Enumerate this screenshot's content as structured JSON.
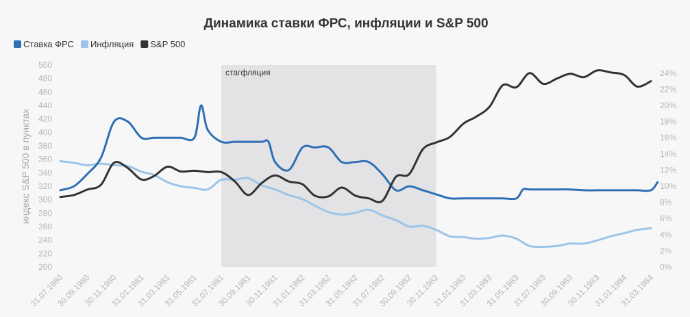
{
  "chart_data": {
    "type": "line",
    "title": "Динамика ставки ФРС, инфляции и S&P 500",
    "ylabel": "индекс S&P 500 в пунктах",
    "ylim": [
      200,
      500
    ],
    "y_ticks": [
      "500",
      "480",
      "460",
      "440",
      "420",
      "400",
      "380",
      "360",
      "340",
      "320",
      "300",
      "280",
      "260",
      "240",
      "220",
      "200"
    ],
    "y2lim": [
      0,
      25
    ],
    "y2_ticks": [
      "24%",
      "22%",
      "20%",
      "18%",
      "16%",
      "14%",
      "12%",
      "10%",
      "8%",
      "6%",
      "4%",
      "2%",
      "0%"
    ],
    "x_ticks": [
      "31.07.1980",
      "30.09.1980",
      "30.11.1980",
      "31.01.1981",
      "31.03.1981",
      "31.05.1981",
      "31.07.1981",
      "30.09.1981",
      "30.11.1981",
      "31.01.1982",
      "31.03.1982",
      "31.05.1982",
      "31.07.1982",
      "30.09.1982",
      "30.11.1982",
      "31.01.1983",
      "31.03.1983",
      "31.05.1983",
      "31.07.1983",
      "30.09.1983",
      "30.11.1983",
      "31.01.1984",
      "31.03.1984"
    ],
    "grid": false,
    "legend_position": "top-left",
    "shaded_region": {
      "label": "стагфляция",
      "from": "31.07.1981",
      "to": "30.11.1982",
      "color": "#e3e3e5"
    },
    "series": [
      {
        "name": "Ставка ФРС",
        "axis": "right",
        "color": "#2e6fb6",
        "points": [
          [
            "31.07.1980",
            9.5
          ],
          [
            "31.08.1980",
            10.0
          ],
          [
            "30.09.1980",
            11.5
          ],
          [
            "31.10.1980",
            13.5
          ],
          [
            "30.11.1980",
            18.0
          ],
          [
            "31.12.1980",
            18.0
          ],
          [
            "31.01.1981",
            16.0
          ],
          [
            "28.02.1981",
            16.0
          ],
          [
            "31.03.1981",
            16.0
          ],
          [
            "30.04.1981",
            16.0
          ],
          [
            "31.05.1981",
            16.0
          ],
          [
            "15.06.1981",
            20.0
          ],
          [
            "30.06.1981",
            17.0
          ],
          [
            "31.07.1981",
            15.5
          ],
          [
            "31.08.1981",
            15.5
          ],
          [
            "30.09.1981",
            15.5
          ],
          [
            "31.10.1981",
            15.5
          ],
          [
            "15.11.1981",
            15.5
          ],
          [
            "30.11.1981",
            13.0
          ],
          [
            "31.12.1981",
            12.0
          ],
          [
            "31.01.1982",
            14.8
          ],
          [
            "28.02.1982",
            14.8
          ],
          [
            "31.03.1982",
            14.8
          ],
          [
            "30.04.1982",
            13.0
          ],
          [
            "31.05.1982",
            13.0
          ],
          [
            "30.06.1982",
            13.0
          ],
          [
            "31.07.1982",
            11.5
          ],
          [
            "31.08.1982",
            9.5
          ],
          [
            "30.09.1982",
            10.0
          ],
          [
            "31.10.1982",
            9.5
          ],
          [
            "30.11.1982",
            9.0
          ],
          [
            "31.12.1982",
            8.5
          ],
          [
            "31.01.1983",
            8.5
          ],
          [
            "28.02.1983",
            8.5
          ],
          [
            "31.03.1983",
            8.5
          ],
          [
            "30.04.1983",
            8.5
          ],
          [
            "31.05.1983",
            8.5
          ],
          [
            "15.06.1983",
            9.6
          ],
          [
            "30.06.1983",
            9.6
          ],
          [
            "31.07.1983",
            9.6
          ],
          [
            "31.08.1983",
            9.6
          ],
          [
            "30.09.1983",
            9.6
          ],
          [
            "31.10.1983",
            9.5
          ],
          [
            "30.11.1983",
            9.5
          ],
          [
            "31.12.1983",
            9.5
          ],
          [
            "31.01.1984",
            9.5
          ],
          [
            "29.02.1984",
            9.5
          ],
          [
            "31.03.1984",
            9.5
          ],
          [
            "15.04.1984",
            10.5
          ]
        ]
      },
      {
        "name": "Инфляция",
        "axis": "right",
        "color": "#9dc3e8",
        "points": [
          [
            "31.07.1980",
            13.1
          ],
          [
            "31.08.1980",
            12.9
          ],
          [
            "30.09.1980",
            12.6
          ],
          [
            "31.10.1980",
            12.8
          ],
          [
            "30.11.1980",
            12.6
          ],
          [
            "31.12.1980",
            12.5
          ],
          [
            "31.01.1981",
            11.8
          ],
          [
            "28.02.1981",
            11.4
          ],
          [
            "31.03.1981",
            10.5
          ],
          [
            "30.04.1981",
            10.0
          ],
          [
            "31.05.1981",
            9.8
          ],
          [
            "30.06.1981",
            9.6
          ],
          [
            "31.07.1981",
            10.8
          ],
          [
            "31.08.1981",
            10.8
          ],
          [
            "30.09.1981",
            11.0
          ],
          [
            "31.10.1981",
            10.1
          ],
          [
            "30.11.1981",
            9.6
          ],
          [
            "31.12.1981",
            8.9
          ],
          [
            "31.01.1982",
            8.4
          ],
          [
            "28.02.1982",
            7.6
          ],
          [
            "31.03.1982",
            6.8
          ],
          [
            "30.04.1982",
            6.5
          ],
          [
            "31.05.1982",
            6.7
          ],
          [
            "30.06.1982",
            7.1
          ],
          [
            "31.07.1982",
            6.4
          ],
          [
            "31.08.1982",
            5.8
          ],
          [
            "30.09.1982",
            5.0
          ],
          [
            "31.10.1982",
            5.1
          ],
          [
            "30.11.1982",
            4.6
          ],
          [
            "31.12.1982",
            3.8
          ],
          [
            "31.01.1983",
            3.7
          ],
          [
            "28.02.1983",
            3.5
          ],
          [
            "31.03.1983",
            3.6
          ],
          [
            "30.04.1983",
            3.9
          ],
          [
            "31.05.1983",
            3.5
          ],
          [
            "30.06.1983",
            2.6
          ],
          [
            "31.07.1983",
            2.5
          ],
          [
            "31.08.1983",
            2.6
          ],
          [
            "30.09.1983",
            2.9
          ],
          [
            "31.10.1983",
            2.9
          ],
          [
            "30.11.1983",
            3.3
          ],
          [
            "31.12.1983",
            3.8
          ],
          [
            "31.01.1984",
            4.2
          ],
          [
            "29.02.1984",
            4.6
          ],
          [
            "31.03.1984",
            4.8
          ]
        ]
      },
      {
        "name": "S&P 500",
        "axis": "left",
        "color": "#333333",
        "points": [
          [
            "31.07.1980",
            304
          ],
          [
            "31.08.1980",
            307
          ],
          [
            "30.09.1980",
            315
          ],
          [
            "31.10.1980",
            322
          ],
          [
            "30.11.1980",
            355
          ],
          [
            "31.12.1980",
            347
          ],
          [
            "31.01.1981",
            330
          ],
          [
            "28.02.1981",
            335
          ],
          [
            "31.03.1981",
            349
          ],
          [
            "30.04.1981",
            342
          ],
          [
            "31.05.1981",
            343
          ],
          [
            "30.06.1981",
            341
          ],
          [
            "31.07.1981",
            341
          ],
          [
            "31.08.1981",
            327
          ],
          [
            "30.09.1981",
            307
          ],
          [
            "31.10.1981",
            325
          ],
          [
            "30.11.1981",
            336
          ],
          [
            "31.12.1981",
            327
          ],
          [
            "31.01.1982",
            323
          ],
          [
            "28.02.1982",
            306
          ],
          [
            "31.03.1982",
            305
          ],
          [
            "30.04.1982",
            318
          ],
          [
            "31.05.1982",
            306
          ],
          [
            "30.06.1982",
            302
          ],
          [
            "31.07.1982",
            298
          ],
          [
            "31.08.1982",
            334
          ],
          [
            "30.09.1982",
            338
          ],
          [
            "31.10.1982",
            375
          ],
          [
            "30.11.1982",
            385
          ],
          [
            "31.12.1982",
            393
          ],
          [
            "31.01.1983",
            413
          ],
          [
            "28.02.1983",
            423
          ],
          [
            "31.03.1983",
            438
          ],
          [
            "30.04.1983",
            470
          ],
          [
            "31.05.1983",
            467
          ],
          [
            "30.06.1983",
            488
          ],
          [
            "31.07.1983",
            472
          ],
          [
            "31.08.1983",
            480
          ],
          [
            "30.09.1983",
            487
          ],
          [
            "31.10.1983",
            482
          ],
          [
            "30.11.1983",
            492
          ],
          [
            "31.12.1983",
            489
          ],
          [
            "31.01.1984",
            485
          ],
          [
            "29.02.1984",
            468
          ],
          [
            "31.03.1984",
            476
          ]
        ]
      }
    ]
  }
}
